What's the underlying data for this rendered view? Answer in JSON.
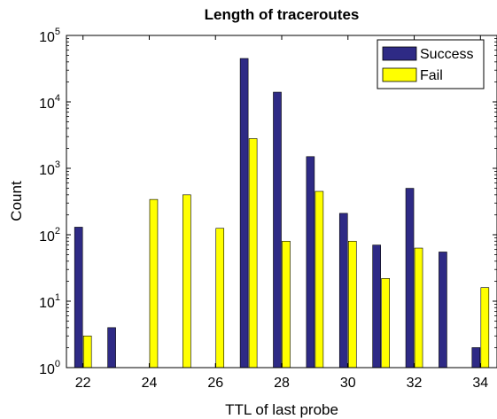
{
  "chart_data": {
    "type": "bar",
    "title": "Length of traceroutes",
    "xlabel": "TTL of last probe",
    "ylabel": "Count",
    "yscale": "log",
    "ylim": [
      1,
      100000
    ],
    "xlim": [
      21.5,
      34.5
    ],
    "categories": [
      22,
      23,
      24,
      25,
      26,
      27,
      28,
      29,
      30,
      31,
      32,
      33,
      34
    ],
    "x_ticks": [
      22,
      24,
      26,
      28,
      30,
      32,
      34
    ],
    "y_ticks": [
      {
        "base": "10",
        "exp": "0"
      },
      {
        "base": "10",
        "exp": "1"
      },
      {
        "base": "10",
        "exp": "2"
      },
      {
        "base": "10",
        "exp": "3"
      },
      {
        "base": "10",
        "exp": "4"
      },
      {
        "base": "10",
        "exp": "5"
      }
    ],
    "legend_position": "top-right",
    "grid": false,
    "series": [
      {
        "name": "Success",
        "color": "#2e2a85",
        "values": [
          130,
          4,
          null,
          null,
          null,
          45000,
          14000,
          1500,
          210,
          70,
          500,
          55,
          2
        ]
      },
      {
        "name": "Fail",
        "color": "#ffff00",
        "values": [
          3,
          null,
          340,
          400,
          125,
          2800,
          80,
          450,
          80,
          22,
          63,
          null,
          16
        ]
      }
    ]
  }
}
